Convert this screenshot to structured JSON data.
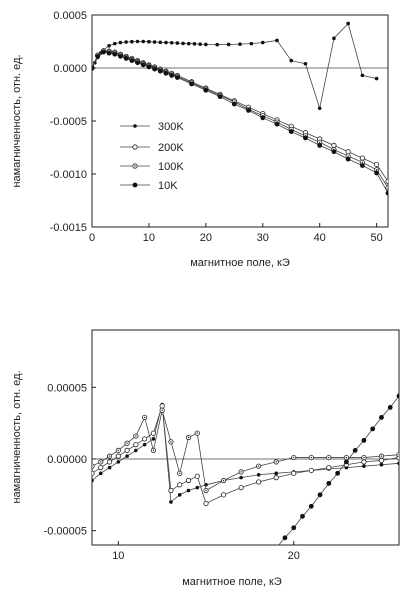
{
  "chart_data": [
    {
      "type": "line",
      "xlabel": "магнитное поле, кЭ",
      "ylabel": "намагниченность, отн. ед.",
      "xlim": [
        0,
        52
      ],
      "ylim": [
        -0.0015,
        0.0005
      ],
      "xticks": [
        {
          "v": 0,
          "label": "0"
        },
        {
          "v": 10,
          "label": "10"
        },
        {
          "v": 20,
          "label": "20"
        },
        {
          "v": 30,
          "label": "30"
        },
        {
          "v": 40,
          "label": "40"
        },
        {
          "v": 50,
          "label": "50"
        }
      ],
      "yticks": [
        {
          "v": 0.0005,
          "label": "0.0005"
        },
        {
          "v": 0.0,
          "label": "0.0000"
        },
        {
          "v": -0.0005,
          "label": "-0.0005"
        },
        {
          "v": -0.001,
          "label": "-0.0010"
        },
        {
          "v": -0.0015,
          "label": "-0.0015"
        }
      ],
      "zero_line": true,
      "legend_position": "center-left",
      "series": [
        {
          "name": "300K",
          "marker": "filled-small",
          "x": [
            0,
            0.5,
            1,
            1.5,
            2,
            3,
            4,
            5,
            6,
            7,
            8,
            9,
            10,
            11,
            12,
            13,
            14,
            15,
            16,
            17,
            18,
            19,
            20,
            22,
            24,
            26,
            28,
            30,
            32.5,
            35,
            37.5,
            40,
            42.5,
            45,
            47.5,
            50
          ],
          "y": [
            0,
            5e-05,
            0.0001,
            0.00014,
            0.00017,
            0.00021,
            0.00023,
            0.00024,
            0.000245,
            0.000248,
            0.00025,
            0.00025,
            0.000248,
            0.000245,
            0.000242,
            0.00024,
            0.000238,
            0.000235,
            0.000232,
            0.00023,
            0.000228,
            0.000225,
            0.000222,
            0.00022,
            0.000222,
            0.000225,
            0.00023,
            0.00024,
            0.00026,
            7e-05,
            4e-05,
            -0.00038,
            0.00028,
            0.00042,
            -7e-05,
            -0.0001
          ]
        },
        {
          "name": "200K",
          "marker": "open",
          "x": [
            0,
            1,
            2,
            3,
            4,
            5,
            6,
            7,
            8,
            9,
            10,
            11,
            12,
            13,
            14,
            15,
            17.5,
            20,
            22.5,
            25,
            27.5,
            30,
            32.5,
            35,
            37.5,
            40,
            42.5,
            45,
            47.5,
            50,
            52
          ],
          "y": [
            0,
            0.00012,
            0.00016,
            0.00016,
            0.00015,
            0.00013,
            0.00011,
            9e-05,
            7e-05,
            5e-05,
            3e-05,
            1e-05,
            -1e-05,
            -3e-05,
            -5e-05,
            -7e-05,
            -0.00013,
            -0.00019,
            -0.00025,
            -0.00031,
            -0.00037,
            -0.00043,
            -0.00049,
            -0.00055,
            -0.00061,
            -0.00067,
            -0.00073,
            -0.00079,
            -0.00085,
            -0.00091,
            -0.00107
          ]
        },
        {
          "name": "100K",
          "marker": "open-dot",
          "x": [
            0,
            1,
            2,
            3,
            4,
            5,
            6,
            7,
            8,
            9,
            10,
            11,
            12,
            13,
            14,
            15,
            17.5,
            20,
            22.5,
            25,
            27.5,
            30,
            32.5,
            35,
            37.5,
            40,
            42.5,
            45,
            47.5,
            50,
            52
          ],
          "y": [
            0,
            0.00012,
            0.00016,
            0.00015,
            0.00014,
            0.00012,
            0.0001,
            8e-05,
            6e-05,
            4e-05,
            2e-05,
            0,
            -2e-05,
            -4e-05,
            -6e-05,
            -8e-05,
            -0.00014,
            -0.0002,
            -0.00026,
            -0.00032,
            -0.00039,
            -0.00045,
            -0.00051,
            -0.00058,
            -0.00064,
            -0.0007,
            -0.00077,
            -0.00083,
            -0.00089,
            -0.00096,
            -0.00113
          ]
        },
        {
          "name": "10K",
          "marker": "filled",
          "x": [
            0,
            1,
            2,
            3,
            4,
            5,
            6,
            7,
            8,
            9,
            10,
            11,
            12,
            13,
            14,
            15,
            17.5,
            20,
            22.5,
            25,
            27.5,
            30,
            32.5,
            35,
            37.5,
            40,
            42.5,
            45,
            47.5,
            50,
            52
          ],
          "y": [
            0,
            0.00011,
            0.00015,
            0.00014,
            0.00013,
            0.00011,
            9e-05,
            7e-05,
            5e-05,
            3e-05,
            1e-05,
            -1e-05,
            -3e-05,
            -5e-05,
            -7e-05,
            -9e-05,
            -0.00015,
            -0.00021,
            -0.00027,
            -0.00034,
            -0.0004,
            -0.00047,
            -0.00053,
            -0.0006,
            -0.00066,
            -0.00073,
            -0.00079,
            -0.00086,
            -0.00092,
            -0.00099,
            -0.00118
          ]
        }
      ]
    },
    {
      "type": "line",
      "xlabel": "магнитное поле, кЭ",
      "ylabel": "намагниченность, отн. ед.",
      "xlim": [
        8.5,
        26
      ],
      "ylim": [
        -6e-05,
        9e-05
      ],
      "xticks": [
        {
          "v": 10,
          "label": "10"
        },
        {
          "v": 20,
          "label": "20"
        }
      ],
      "yticks": [
        {
          "v": 5e-05,
          "label": "0.00005"
        },
        {
          "v": 0.0,
          "label": "0.00000"
        },
        {
          "v": -5e-05,
          "label": "-0.00005"
        }
      ],
      "zero_line": true,
      "series": [
        {
          "name": "300K",
          "marker": "filled-small",
          "x": [
            8.5,
            9,
            9.5,
            10,
            10.5,
            11,
            11.5,
            12,
            12.5,
            13,
            13.5,
            14,
            14.5,
            15,
            16,
            17,
            18,
            19,
            20,
            21,
            22,
            23,
            24,
            25,
            26
          ],
          "y": [
            -1.5e-05,
            -1e-05,
            -6e-06,
            -2e-06,
            2e-06,
            6e-06,
            1e-05,
            1.4e-05,
            3.8e-05,
            -3e-05,
            -2.5e-05,
            -2.2e-05,
            -2e-05,
            -1.8e-05,
            -1.5e-05,
            -1.3e-05,
            -1.1e-05,
            -1e-05,
            -9e-06,
            -8e-06,
            -7e-06,
            -6e-06,
            -5e-06,
            -4e-06,
            -3e-06
          ]
        },
        {
          "name": "200K",
          "marker": "open",
          "x": [
            8.5,
            9,
            9.5,
            10,
            10.5,
            11,
            11.5,
            12,
            12.5,
            13,
            13.5,
            14,
            14.5,
            15,
            16,
            17,
            18,
            19,
            20,
            21,
            22,
            23,
            24,
            25,
            26
          ],
          "y": [
            -1e-05,
            -6e-06,
            -2e-06,
            2e-06,
            6e-06,
            1e-05,
            1.4e-05,
            1.8e-05,
            3.7e-05,
            -2.2e-05,
            -1.8e-05,
            -1.5e-05,
            -1.2e-05,
            -3.1e-05,
            -2.5e-05,
            -2e-05,
            -1.6e-05,
            -1.3e-05,
            -1e-05,
            -8e-06,
            -6e-06,
            -4e-06,
            -2e-06,
            -1e-06,
            1e-06
          ]
        },
        {
          "name": "100K",
          "marker": "open-dot",
          "x": [
            8.5,
            9,
            9.5,
            10,
            10.5,
            11,
            11.5,
            12,
            12.5,
            13,
            13.5,
            14,
            14.5,
            15,
            16,
            17,
            18,
            19,
            20,
            21,
            22,
            23,
            24,
            25,
            26
          ],
          "y": [
            -5e-06,
            -2e-06,
            2e-06,
            6e-06,
            1.1e-05,
            1.6e-05,
            2.9e-05,
            6e-06,
            3.4e-05,
            1.2e-05,
            -1e-05,
            1.5e-05,
            1.8e-05,
            -2.2e-05,
            -1.5e-05,
            -9e-06,
            -5e-06,
            -2e-06,
            1e-06,
            1e-06,
            1e-06,
            1e-06,
            1e-06,
            2e-06,
            3e-06
          ]
        },
        {
          "name": "10K",
          "marker": "filled",
          "x": [
            16.8,
            17.5,
            18,
            18.5,
            19,
            19.5,
            20,
            20.5,
            21,
            21.5,
            22,
            22.5,
            23,
            23.5,
            24,
            24.5,
            25,
            25.5,
            26
          ],
          "y": [
            -9.5e-05,
            -8.5e-05,
            -7.7e-05,
            -7e-05,
            -6.2e-05,
            -5.5e-05,
            -4.8e-05,
            -4e-05,
            -3.3e-05,
            -2.5e-05,
            -1.7e-05,
            -1e-05,
            -2e-06,
            6e-06,
            1.3e-05,
            2.1e-05,
            2.9e-05,
            3.6e-05,
            4.4e-05
          ]
        }
      ]
    }
  ]
}
